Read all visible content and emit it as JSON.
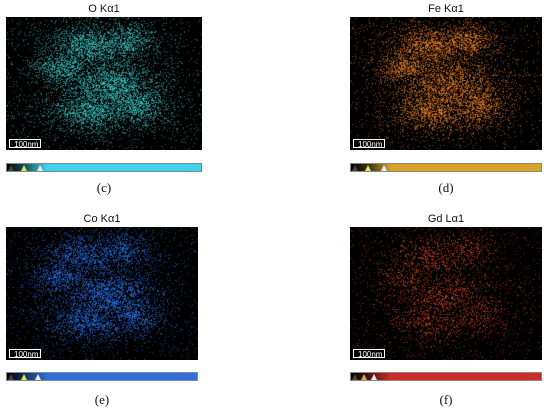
{
  "panels": [
    {
      "id": "c",
      "title": "O Kα1",
      "caption": "(c)",
      "scalebar_label": "100nm",
      "map_color": "#3fd6d6",
      "bar_color": "#3dd3ee",
      "gradient": [
        "#000000",
        "#1b5b62",
        "#3dd3ee"
      ],
      "triangle_colors": [
        "#444444",
        "#d4e85a",
        "#e8f4f4"
      ],
      "noise_level": 0.65
    },
    {
      "id": "d",
      "title": "Fe Kα1",
      "caption": "(d)",
      "scalebar_label": "100nm",
      "map_color": "#ff8a1e",
      "bar_color": "#d9a32a",
      "gradient": [
        "#000000",
        "#4a3a12",
        "#d9a32a"
      ],
      "triangle_colors": [
        "#444444",
        "#d4e85a",
        "#e8f4f4"
      ],
      "noise_level": 0.6
    },
    {
      "id": "e",
      "title": "Co Kα1",
      "caption": "(e)",
      "scalebar_label": "100nm",
      "map_color": "#2a7cff",
      "bar_color": "#2f6fd8",
      "gradient": [
        "#000000",
        "#1a3766",
        "#2f6fd8"
      ],
      "triangle_colors": [
        "#444444",
        "#d4e85a",
        "#e8f4f4"
      ],
      "noise_level": 0.55
    },
    {
      "id": "f",
      "title": "Gd Lα1",
      "caption": "(f)",
      "scalebar_label": "100nm",
      "map_color": "#d8471a",
      "bar_color": "#d02a28",
      "gradient": [
        "#000000",
        "#5a1414",
        "#d02a28"
      ],
      "triangle_colors": [
        "#444444",
        "#d4a24a",
        "#e8f4f4"
      ],
      "noise_level": 0.3
    }
  ]
}
